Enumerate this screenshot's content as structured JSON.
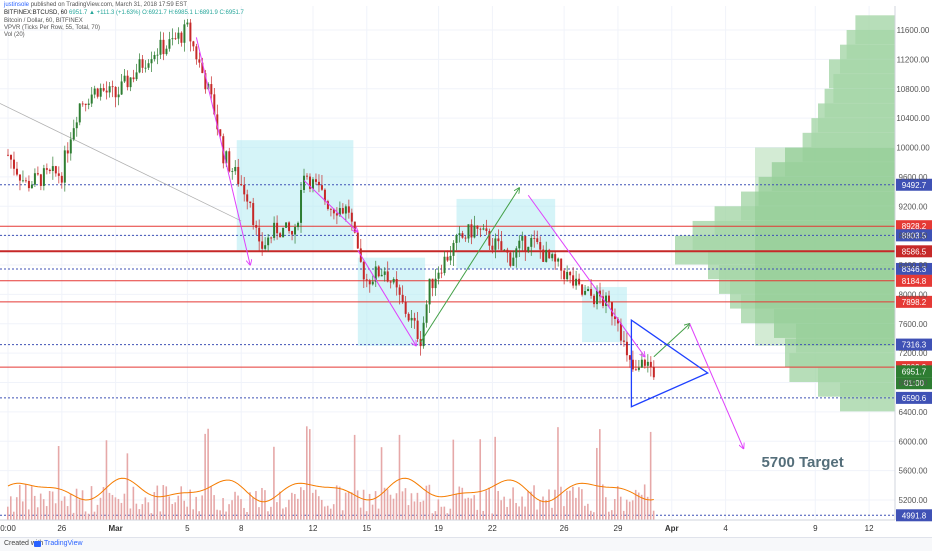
{
  "header": {
    "author": "justinsole",
    "published": "published on TradingView.com, March 31, 2018 17:59 EST",
    "symbol_line": "BITFINEX:BTCUSD, 60",
    "ohlc": "6951.7 ▲ +111.3 (+1.63%) O:6921.7 H:6985.1 L:6891.9 C:6951.7",
    "title": "Bitcoin / Dollar, 60, BITFINEX",
    "indicator_vpvr": "VPVR (Ticks Per Row, 55, Total, 70)",
    "indicator_vol": "Vol (20)"
  },
  "footer": {
    "created_with": "Created with",
    "brand": "TradingView"
  },
  "colors": {
    "up_candle": "#2e7d32",
    "down_candle": "#c62828",
    "volume_bar": "#e6a8a8",
    "volume_ma": "#f57c00",
    "volume_profile": "#a5d6a7",
    "consolidation_box": "#b2ebf2",
    "arrow_down": "#e040fb",
    "arrow_up": "#43a047",
    "triangle": "#1e40ff",
    "support_blue": "#3f51b5",
    "resistance_red": "#e53935"
  },
  "chart_data": {
    "type": "candlestick",
    "title": "Bitcoin / Dollar, 60, BITFINEX",
    "interval": "60",
    "xlabel": "",
    "ylabel": "",
    "x_range": [
      "2018-02-23",
      "2018-04-14"
    ],
    "ylim": [
      4900,
      11800
    ],
    "x_ticks": [
      {
        "label": "0:00",
        "date": "2018-02-23"
      },
      {
        "label": "26",
        "date": "2018-02-26"
      },
      {
        "label": "Mar",
        "date": "2018-03-01"
      },
      {
        "label": "5",
        "date": "2018-03-05"
      },
      {
        "label": "8",
        "date": "2018-03-08"
      },
      {
        "label": "12",
        "date": "2018-03-12"
      },
      {
        "label": "15",
        "date": "2018-03-15"
      },
      {
        "label": "19",
        "date": "2018-03-19"
      },
      {
        "label": "22",
        "date": "2018-03-22"
      },
      {
        "label": "26",
        "date": "2018-03-26"
      },
      {
        "label": "29",
        "date": "2018-03-29"
      },
      {
        "label": "Apr",
        "date": "2018-04-01"
      },
      {
        "label": "4",
        "date": "2018-04-04"
      },
      {
        "label": "9",
        "date": "2018-04-09"
      },
      {
        "label": "12",
        "date": "2018-04-12"
      }
    ],
    "y_ticks": [
      11600,
      11200,
      10800,
      10400,
      10000,
      9600,
      9200,
      8800,
      8400,
      8000,
      7600,
      7200,
      6800,
      6400,
      6000,
      5600,
      5200
    ],
    "price_path": [
      {
        "date": "2018-02-23",
        "price": 9900
      },
      {
        "date": "2018-02-24",
        "price": 9500
      },
      {
        "date": "2018-02-25",
        "price": 9600
      },
      {
        "date": "2018-02-26",
        "price": 9650
      },
      {
        "date": "2018-02-26 12:00",
        "price": 10200
      },
      {
        "date": "2018-02-27",
        "price": 10600
      },
      {
        "date": "2018-02-28",
        "price": 10800
      },
      {
        "date": "2018-03-01",
        "price": 10700
      },
      {
        "date": "2018-03-02",
        "price": 11000
      },
      {
        "date": "2018-03-03",
        "price": 11300
      },
      {
        "date": "2018-03-04",
        "price": 11400
      },
      {
        "date": "2018-03-05",
        "price": 11600
      },
      {
        "date": "2018-03-06",
        "price": 10900
      },
      {
        "date": "2018-03-06 12:00",
        "price": 10500
      },
      {
        "date": "2018-03-07",
        "price": 9900
      },
      {
        "date": "2018-03-08",
        "price": 9500
      },
      {
        "date": "2018-03-08 12:00",
        "price": 9300
      },
      {
        "date": "2018-03-09",
        "price": 8600
      },
      {
        "date": "2018-03-10",
        "price": 8900
      },
      {
        "date": "2018-03-11",
        "price": 8800
      },
      {
        "date": "2018-03-11 12:00",
        "price": 9700
      },
      {
        "date": "2018-03-12",
        "price": 9500
      },
      {
        "date": "2018-03-13",
        "price": 9200
      },
      {
        "date": "2018-03-14",
        "price": 9150
      },
      {
        "date": "2018-03-14 12:00",
        "price": 8500
      },
      {
        "date": "2018-03-15",
        "price": 8200
      },
      {
        "date": "2018-03-16",
        "price": 8350
      },
      {
        "date": "2018-03-17",
        "price": 7850
      },
      {
        "date": "2018-03-18",
        "price": 7400
      },
      {
        "date": "2018-03-18 12:00",
        "price": 8100
      },
      {
        "date": "2018-03-19",
        "price": 8350
      },
      {
        "date": "2018-03-20",
        "price": 8700
      },
      {
        "date": "2018-03-21",
        "price": 8900
      },
      {
        "date": "2018-03-22",
        "price": 8700
      },
      {
        "date": "2018-03-23",
        "price": 8500
      },
      {
        "date": "2018-03-24",
        "price": 8750
      },
      {
        "date": "2018-03-24 12:00",
        "price": 8650
      },
      {
        "date": "2018-03-25",
        "price": 8500
      },
      {
        "date": "2018-03-26",
        "price": 8300
      },
      {
        "date": "2018-03-27",
        "price": 8000
      },
      {
        "date": "2018-03-28",
        "price": 7950
      },
      {
        "date": "2018-03-29",
        "price": 7700
      },
      {
        "date": "2018-03-29 12:00",
        "price": 7100
      },
      {
        "date": "2018-03-30",
        "price": 6900
      },
      {
        "date": "2018-03-30 12:00",
        "price": 7100
      },
      {
        "date": "2018-03-31",
        "price": 6952
      }
    ],
    "horizontal_levels": [
      {
        "price": 9492.7,
        "label": "9492.7",
        "color": "#3f51b5",
        "style": "dotted"
      },
      {
        "price": 8928.2,
        "label": "8928.2",
        "color": "#e53935",
        "style": "solid"
      },
      {
        "price": 8803.5,
        "label": "8803.5",
        "color": "#3f51b5",
        "style": "dotted"
      },
      {
        "price": 8586.5,
        "label": "8586.5",
        "color": "#c62828",
        "style": "solid-thick"
      },
      {
        "price": 8346.3,
        "label": "8346.3",
        "color": "#3f51b5",
        "style": "dotted"
      },
      {
        "price": 8184.8,
        "label": "8184.8",
        "color": "#e53935",
        "style": "solid"
      },
      {
        "price": 7898.2,
        "label": "7898.2",
        "color": "#e53935",
        "style": "solid"
      },
      {
        "price": 7316.3,
        "label": "7316.3",
        "color": "#3f51b5",
        "style": "dotted"
      },
      {
        "price": 7009.9,
        "label": "7009.9",
        "color": "#e53935",
        "style": "solid"
      },
      {
        "price": 6590.6,
        "label": "6590.6",
        "color": "#3f51b5",
        "style": "dotted"
      },
      {
        "price": 4991.8,
        "label": "4991.8",
        "color": "#3f51b5",
        "style": "dotted"
      }
    ],
    "price_labels": [
      {
        "label": "6951.7",
        "price": 6951.7,
        "color": "#2e7d32"
      },
      {
        "label": "01:00",
        "price": 6790,
        "color": "#2e7d32"
      }
    ],
    "consolidation_boxes": [
      {
        "x1": "2018-03-07 18:00",
        "x2": "2018-03-14 06:00",
        "y1": 8600,
        "y2": 10100
      },
      {
        "x1": "2018-03-14 12:00",
        "x2": "2018-03-18 06:00",
        "y1": 7300,
        "y2": 8500
      },
      {
        "x1": "2018-03-20",
        "x2": "2018-03-25 12:00",
        "y1": 8350,
        "y2": 9300
      },
      {
        "x1": "2018-03-27",
        "x2": "2018-03-29 12:00",
        "y1": 7350,
        "y2": 8100
      }
    ],
    "volume_profile": [
      {
        "price": 11600,
        "volume": 0.18
      },
      {
        "price": 11400,
        "volume": 0.22
      },
      {
        "price": 11200,
        "volume": 0.25
      },
      {
        "price": 11000,
        "volume": 0.3
      },
      {
        "price": 10800,
        "volume": 0.28
      },
      {
        "price": 10600,
        "volume": 0.32
      },
      {
        "price": 10400,
        "volume": 0.35
      },
      {
        "price": 10200,
        "volume": 0.38
      },
      {
        "price": 10000,
        "volume": 0.42
      },
      {
        "price": 9800,
        "volume": 0.5
      },
      {
        "price": 9600,
        "volume": 0.56
      },
      {
        "price": 9400,
        "volume": 0.62
      },
      {
        "price": 9200,
        "volume": 0.7
      },
      {
        "price": 9000,
        "volume": 0.82
      },
      {
        "price": 8800,
        "volume": 0.92
      },
      {
        "price": 8600,
        "volume": 1.0
      },
      {
        "price": 8400,
        "volume": 0.85
      },
      {
        "price": 8200,
        "volume": 0.8
      },
      {
        "price": 8000,
        "volume": 0.75
      },
      {
        "price": 7800,
        "volume": 0.7
      },
      {
        "price": 7600,
        "volume": 0.55
      },
      {
        "price": 7400,
        "volume": 0.45
      },
      {
        "price": 7200,
        "volume": 0.5
      },
      {
        "price": 7000,
        "volume": 0.48
      },
      {
        "price": 6800,
        "volume": 0.35
      },
      {
        "price": 6600,
        "volume": 0.25
      }
    ],
    "annotations": [
      {
        "type": "arrow",
        "color": "#e040fb",
        "from": {
          "date": "2018-03-05 12:00",
          "price": 11500
        },
        "to": {
          "date": "2018-03-08 12:00",
          "price": 8400
        }
      },
      {
        "type": "arrow",
        "color": "#e040fb",
        "from": {
          "date": "2018-03-11 12:00",
          "price": 9550
        },
        "to": {
          "date": "2018-03-14 12:00",
          "price": 8850
        }
      },
      {
        "type": "arrow",
        "color": "#e040fb",
        "from": {
          "date": "2018-03-14 12:00",
          "price": 8600
        },
        "to": {
          "date": "2018-03-17 18:00",
          "price": 7300
        }
      },
      {
        "type": "arrow",
        "color": "#43a047",
        "from": {
          "date": "2018-03-18",
          "price": 7350
        },
        "to": {
          "date": "2018-03-23 12:00",
          "price": 9450
        }
      },
      {
        "type": "arrow",
        "color": "#e040fb",
        "from": {
          "date": "2018-03-24",
          "price": 9350
        },
        "to": {
          "date": "2018-03-30 12:00",
          "price": 7150
        }
      },
      {
        "type": "arrow",
        "color": "#43a047",
        "from": {
          "date": "2018-03-31",
          "price": 7150
        },
        "to": {
          "date": "2018-04-02",
          "price": 7600
        }
      },
      {
        "type": "arrow",
        "color": "#e040fb",
        "from": {
          "date": "2018-04-02",
          "price": 7600
        },
        "to": {
          "date": "2018-04-05",
          "price": 5900
        }
      },
      {
        "type": "triangle",
        "color": "#1e40ff",
        "points": [
          {
            "date": "2018-03-29 18:00",
            "price": 7650
          },
          {
            "date": "2018-04-03",
            "price": 6930
          },
          {
            "date": "2018-03-29 18:00",
            "price": 6470
          }
        ]
      },
      {
        "type": "text",
        "label": "5700 Target",
        "date": "2018-04-06",
        "price": 5650
      }
    ],
    "volume_subpane": {
      "approx_range": [
        5000,
        6200
      ],
      "ma_period": 20
    }
  }
}
